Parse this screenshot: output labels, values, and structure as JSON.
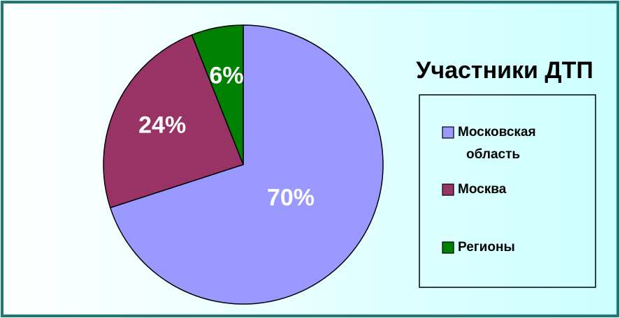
{
  "chart_data": {
    "type": "pie",
    "title": "Участники ДТП",
    "categories": [
      "Московская область",
      "Москва",
      "Регионы"
    ],
    "values": [
      70,
      24,
      6
    ],
    "value_labels": [
      "70%",
      "24%",
      "6%"
    ],
    "colors": [
      "#9999ff",
      "#993366",
      "#008000"
    ],
    "legend": "right"
  }
}
